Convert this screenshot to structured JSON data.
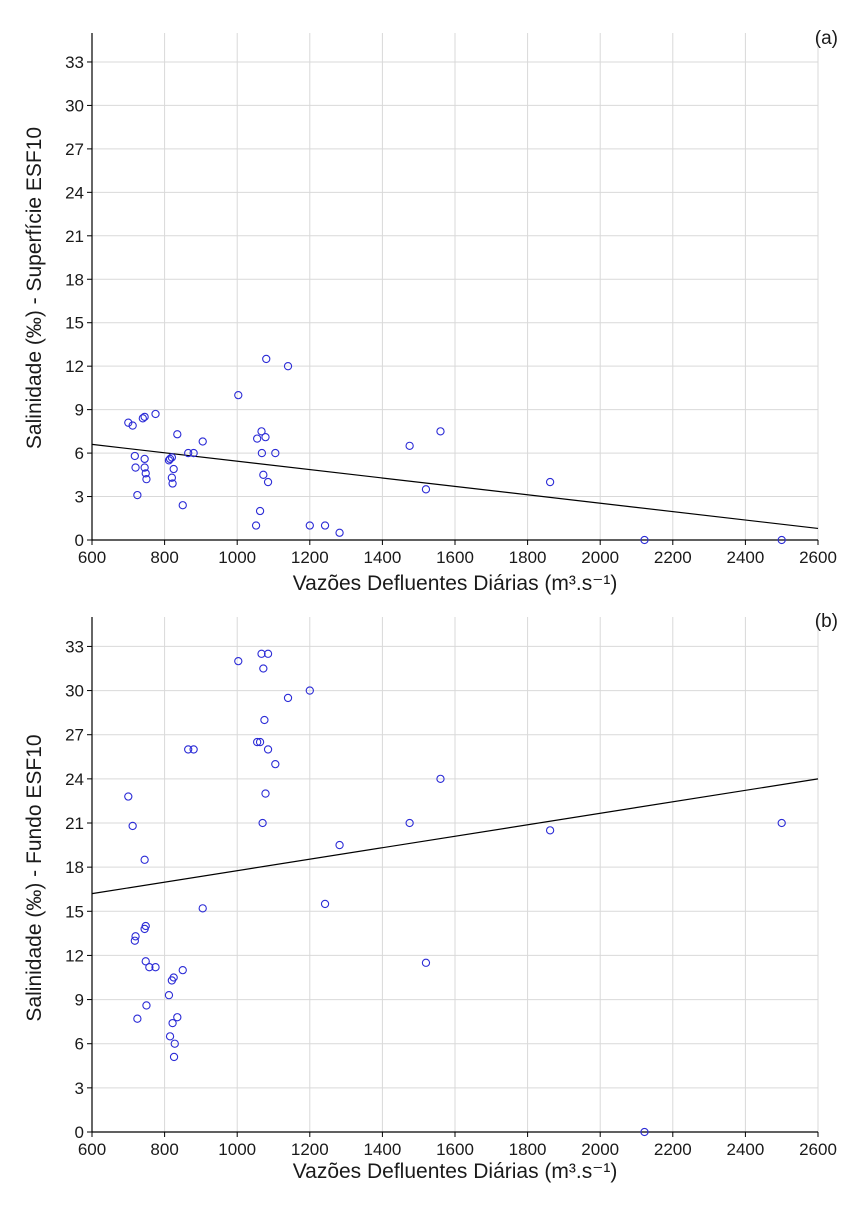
{
  "colors": {
    "points": "#2b2bd6",
    "line": "#000000",
    "grid": "#d9d9d9",
    "axis": "#000000"
  },
  "chart_data": [
    {
      "type": "scatter",
      "panel_label": "(a)",
      "xlabel": "Vazões Defluentes Diárias (m³.s⁻¹)",
      "ylabel": "Salinidade (‰) - Superfície ESF10",
      "xlim": [
        600,
        2600
      ],
      "ylim": [
        0,
        35
      ],
      "xticks": [
        600,
        800,
        1000,
        1200,
        1400,
        1600,
        1800,
        2000,
        2200,
        2400,
        2600
      ],
      "yticks": [
        0,
        3,
        6,
        9,
        12,
        15,
        18,
        21,
        24,
        27,
        30,
        33
      ],
      "grid": true,
      "trend_line": {
        "x": [
          600,
          2600
        ],
        "y": [
          6.6,
          0.8
        ]
      },
      "points": [
        {
          "x": 700,
          "y": 8.1
        },
        {
          "x": 712,
          "y": 7.9
        },
        {
          "x": 718,
          "y": 5.8
        },
        {
          "x": 720,
          "y": 5.0
        },
        {
          "x": 725,
          "y": 3.1
        },
        {
          "x": 740,
          "y": 8.4
        },
        {
          "x": 745,
          "y": 8.5
        },
        {
          "x": 745,
          "y": 5.6
        },
        {
          "x": 745,
          "y": 5.0
        },
        {
          "x": 748,
          "y": 4.6
        },
        {
          "x": 750,
          "y": 4.2
        },
        {
          "x": 775,
          "y": 8.7
        },
        {
          "x": 812,
          "y": 5.5
        },
        {
          "x": 815,
          "y": 5.6
        },
        {
          "x": 820,
          "y": 5.7
        },
        {
          "x": 820,
          "y": 4.3
        },
        {
          "x": 822,
          "y": 3.9
        },
        {
          "x": 825,
          "y": 4.9
        },
        {
          "x": 835,
          "y": 7.3
        },
        {
          "x": 850,
          "y": 2.4
        },
        {
          "x": 865,
          "y": 6.0
        },
        {
          "x": 880,
          "y": 6.0
        },
        {
          "x": 905,
          "y": 6.8
        },
        {
          "x": 1003,
          "y": 10.0
        },
        {
          "x": 1052,
          "y": 1.0
        },
        {
          "x": 1055,
          "y": 7.0
        },
        {
          "x": 1063,
          "y": 2.0
        },
        {
          "x": 1067,
          "y": 7.5
        },
        {
          "x": 1068,
          "y": 6.0
        },
        {
          "x": 1072,
          "y": 4.5
        },
        {
          "x": 1078,
          "y": 7.1
        },
        {
          "x": 1080,
          "y": 12.5
        },
        {
          "x": 1085,
          "y": 4.0
        },
        {
          "x": 1105,
          "y": 6.0
        },
        {
          "x": 1140,
          "y": 12.0
        },
        {
          "x": 1200,
          "y": 1.0
        },
        {
          "x": 1242,
          "y": 1.0
        },
        {
          "x": 1282,
          "y": 0.5
        },
        {
          "x": 1475,
          "y": 6.5
        },
        {
          "x": 1520,
          "y": 3.5
        },
        {
          "x": 1560,
          "y": 7.5
        },
        {
          "x": 1862,
          "y": 4.0
        },
        {
          "x": 2122,
          "y": 0.0
        },
        {
          "x": 2500,
          "y": 0.0
        }
      ]
    },
    {
      "type": "scatter",
      "panel_label": "(b)",
      "xlabel": "Vazões Defluentes Diárias (m³.s⁻¹)",
      "ylabel": "Salinidade (‰) - Fundo ESF10",
      "xlim": [
        600,
        2600
      ],
      "ylim": [
        0,
        35
      ],
      "xticks": [
        600,
        800,
        1000,
        1200,
        1400,
        1600,
        1800,
        2000,
        2200,
        2400,
        2600
      ],
      "yticks": [
        0,
        3,
        6,
        9,
        12,
        15,
        18,
        21,
        24,
        27,
        30,
        33
      ],
      "grid": true,
      "trend_line": {
        "x": [
          600,
          2600
        ],
        "y": [
          16.2,
          24.0
        ]
      },
      "points": [
        {
          "x": 700,
          "y": 22.8
        },
        {
          "x": 712,
          "y": 20.8
        },
        {
          "x": 718,
          "y": 13.0
        },
        {
          "x": 720,
          "y": 13.3
        },
        {
          "x": 725,
          "y": 7.7
        },
        {
          "x": 745,
          "y": 18.5
        },
        {
          "x": 745,
          "y": 13.8
        },
        {
          "x": 748,
          "y": 14.0
        },
        {
          "x": 748,
          "y": 11.6
        },
        {
          "x": 750,
          "y": 8.6
        },
        {
          "x": 758,
          "y": 11.2
        },
        {
          "x": 775,
          "y": 11.2
        },
        {
          "x": 812,
          "y": 9.3
        },
        {
          "x": 815,
          "y": 6.5
        },
        {
          "x": 820,
          "y": 10.3
        },
        {
          "x": 822,
          "y": 7.4
        },
        {
          "x": 825,
          "y": 10.5
        },
        {
          "x": 826,
          "y": 5.1
        },
        {
          "x": 828,
          "y": 6.0
        },
        {
          "x": 835,
          "y": 7.8
        },
        {
          "x": 850,
          "y": 11.0
        },
        {
          "x": 865,
          "y": 26.0
        },
        {
          "x": 880,
          "y": 26.0
        },
        {
          "x": 905,
          "y": 15.2
        },
        {
          "x": 1003,
          "y": 32.0
        },
        {
          "x": 1055,
          "y": 26.5
        },
        {
          "x": 1063,
          "y": 26.5
        },
        {
          "x": 1067,
          "y": 32.5
        },
        {
          "x": 1070,
          "y": 21.0
        },
        {
          "x": 1072,
          "y": 31.5
        },
        {
          "x": 1075,
          "y": 28.0
        },
        {
          "x": 1078,
          "y": 23.0
        },
        {
          "x": 1085,
          "y": 32.5
        },
        {
          "x": 1085,
          "y": 26.0
        },
        {
          "x": 1105,
          "y": 25.0
        },
        {
          "x": 1140,
          "y": 29.5
        },
        {
          "x": 1200,
          "y": 30.0
        },
        {
          "x": 1242,
          "y": 15.5
        },
        {
          "x": 1282,
          "y": 19.5
        },
        {
          "x": 1475,
          "y": 21.0
        },
        {
          "x": 1520,
          "y": 11.5
        },
        {
          "x": 1560,
          "y": 24.0
        },
        {
          "x": 1862,
          "y": 20.5
        },
        {
          "x": 2122,
          "y": 0.0
        },
        {
          "x": 2500,
          "y": 21.0
        }
      ]
    }
  ]
}
